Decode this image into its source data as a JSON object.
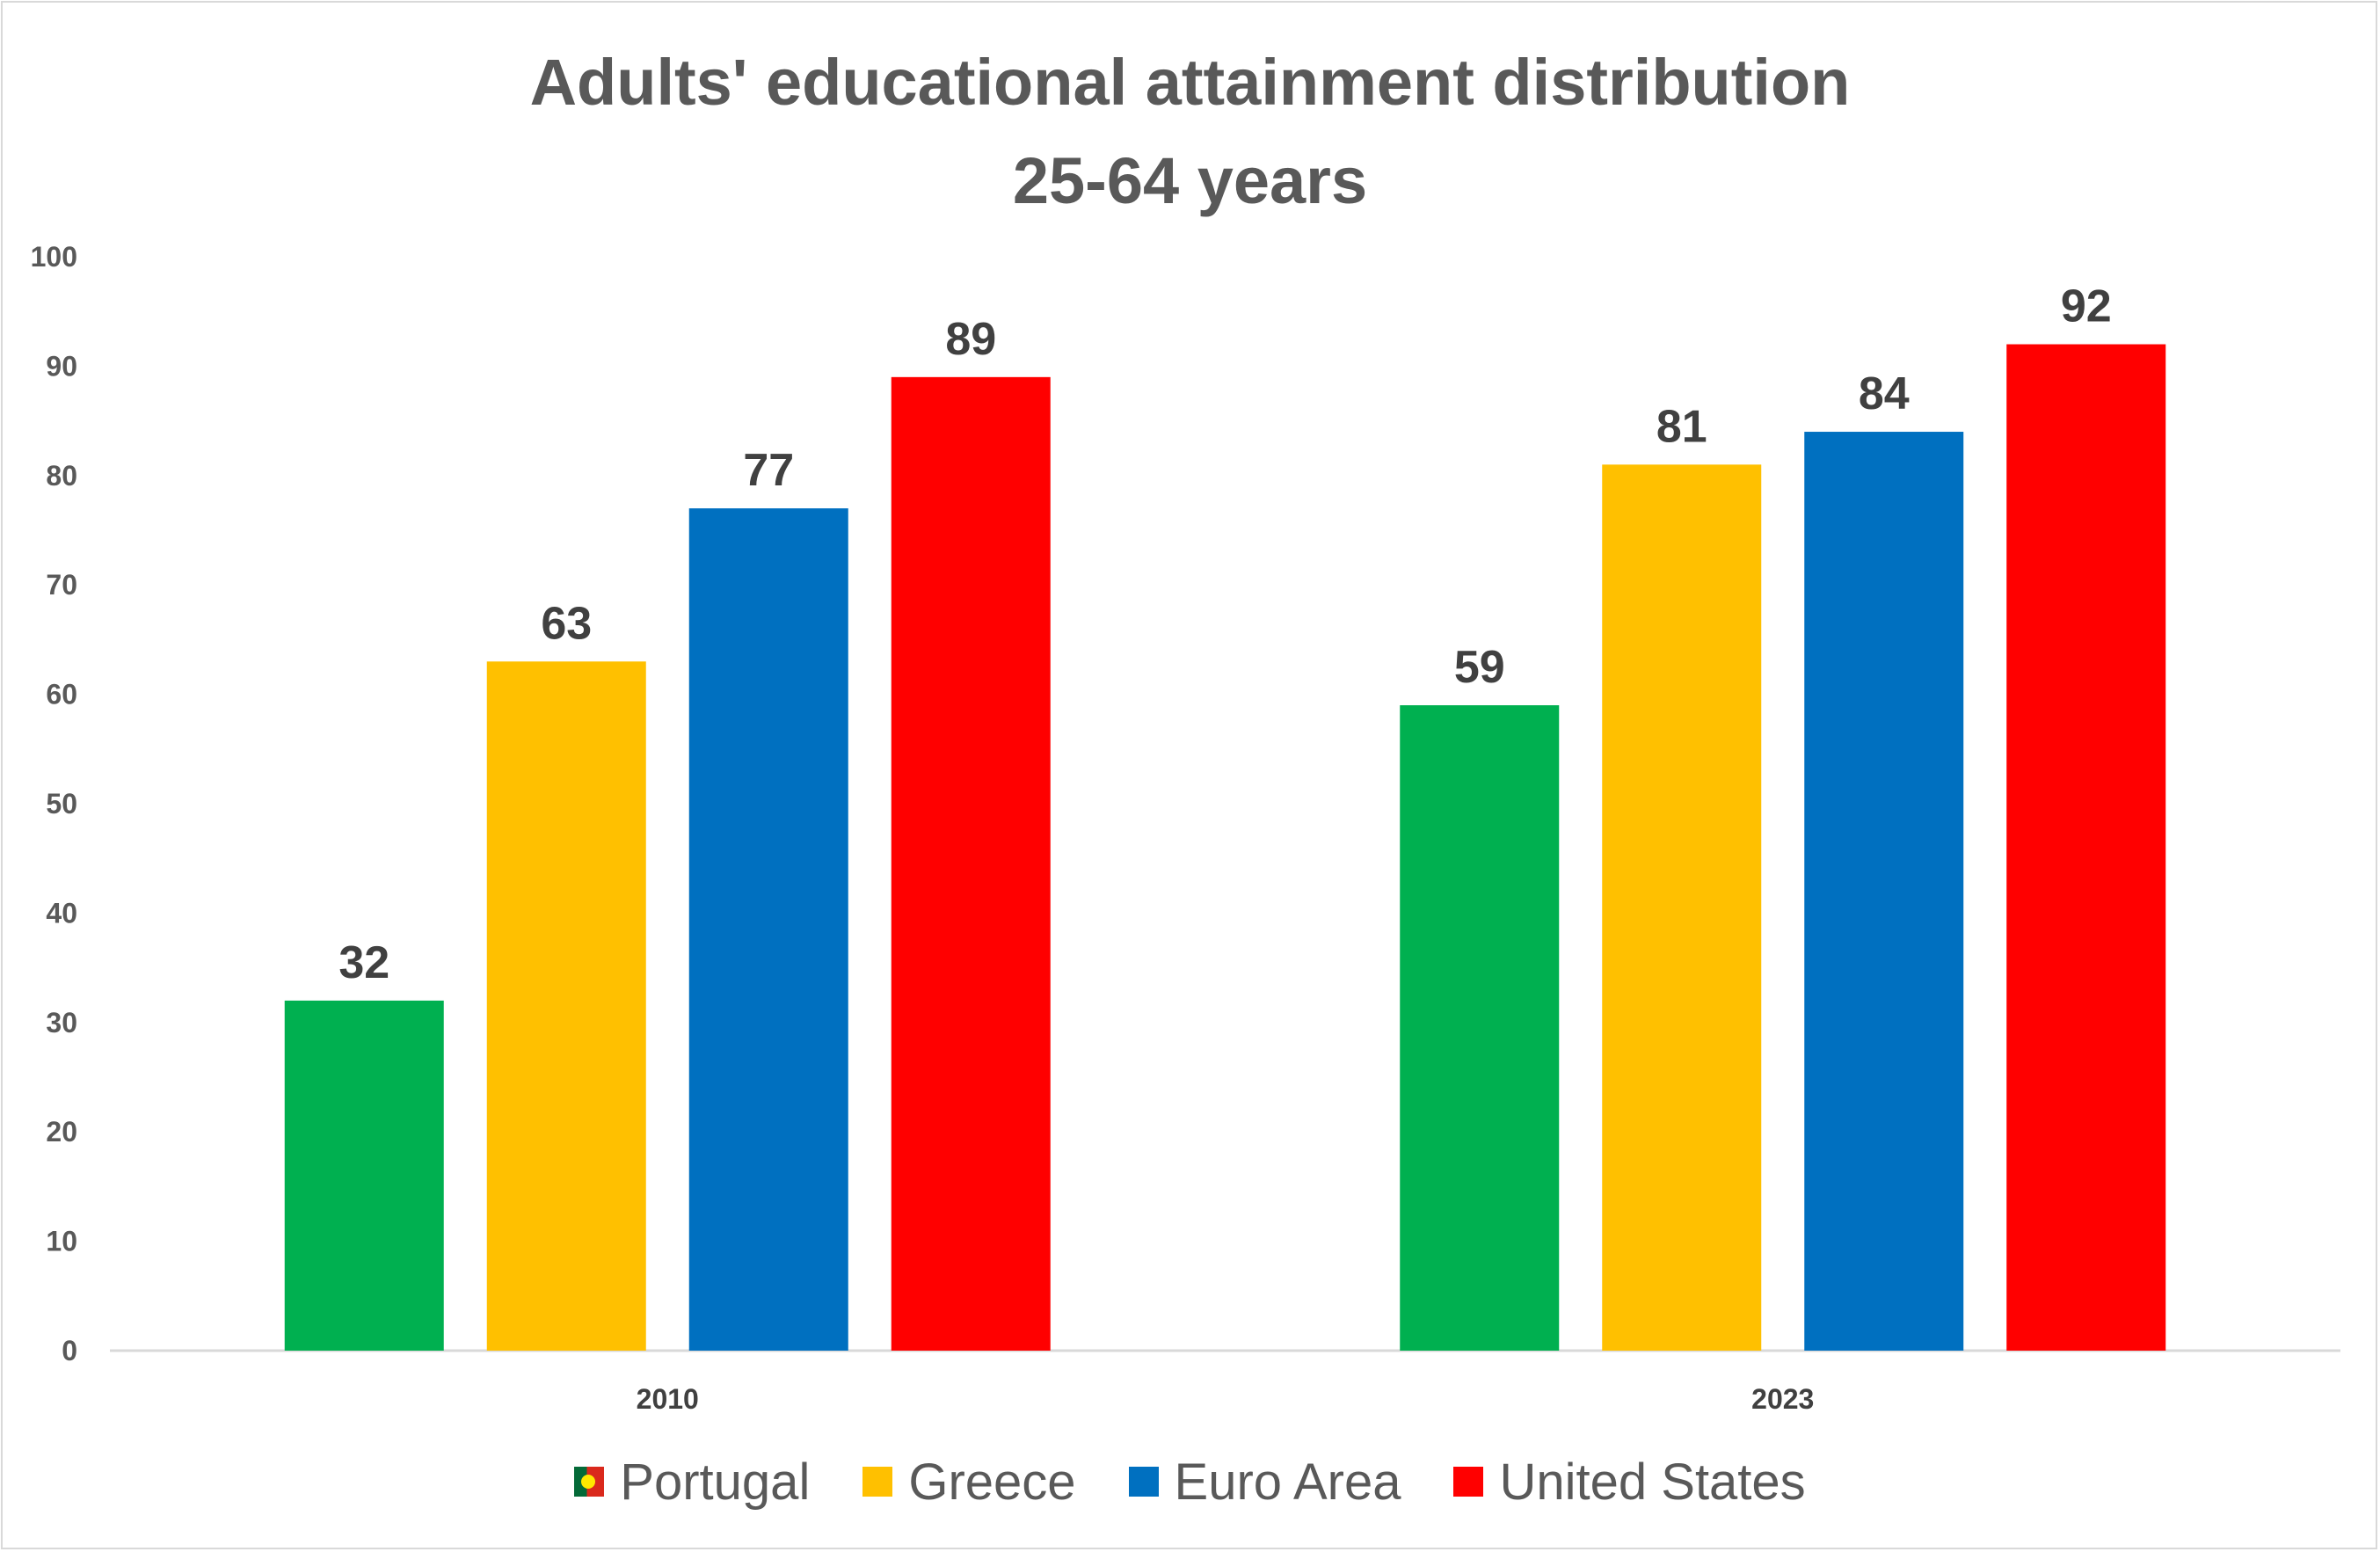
{
  "colors": {
    "portugal": "#00b050",
    "greece": "#ffc000",
    "euro_area": "#0070c0",
    "united_states": "#ff0000",
    "gridline": "#d9d9d9",
    "text": "#595959"
  },
  "chart_data": {
    "type": "bar",
    "title": "Adults' educational attainment distribution",
    "subtitle": "25-64 years",
    "xlabel": "",
    "ylabel": "",
    "ylim": [
      0,
      100
    ],
    "yticks": [
      "0",
      "10",
      "20",
      "30",
      "40",
      "50",
      "60",
      "70",
      "80",
      "90",
      "100"
    ],
    "grid": false,
    "legend_position": "bottom",
    "categories": [
      "2010",
      "2023"
    ],
    "series": [
      {
        "name": "Portugal",
        "key": "portugal",
        "values": [
          32,
          59
        ]
      },
      {
        "name": "Greece",
        "key": "greece",
        "values": [
          63,
          81
        ]
      },
      {
        "name": "Euro Area",
        "key": "euro_area",
        "values": [
          77,
          84
        ]
      },
      {
        "name": "United States",
        "key": "united_states",
        "values": [
          89,
          92
        ]
      }
    ]
  }
}
